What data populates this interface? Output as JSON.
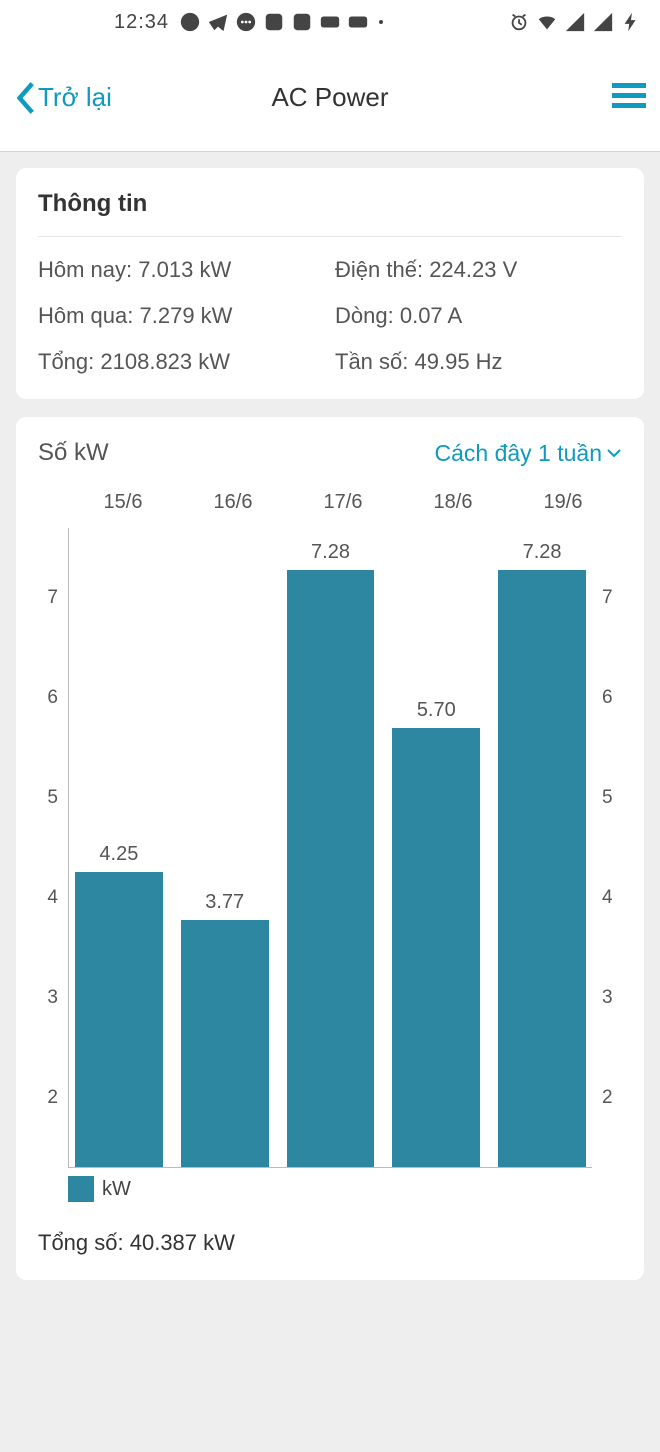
{
  "status_bar": {
    "time": "12:34"
  },
  "header": {
    "back_label": "Trở lại",
    "title": "AC Power"
  },
  "info_card": {
    "title": "Thông tin",
    "today_label": "Hôm nay:",
    "today_value": "7.013 kW",
    "voltage_label": "Điện thế:",
    "voltage_value": "224.23 V",
    "yesterday_label": "Hôm qua:",
    "yesterday_value": "7.279 kW",
    "current_label": "Dòng:",
    "current_value": "0.07 A",
    "total_label": "Tổng:",
    "total_value": "2108.823 kW",
    "freq_label": "Tần số:",
    "freq_value": "49.95 Hz"
  },
  "chart": {
    "type": "bar",
    "y_label": "Số kW",
    "range_label": "Cách đây 1 tuần",
    "categories": [
      "15/6",
      "16/6",
      "17/6",
      "18/6",
      "19/6"
    ],
    "values": [
      4.25,
      3.77,
      7.28,
      5.7,
      7.28
    ],
    "value_labels": [
      "4.25",
      "3.77",
      "7.28",
      "5.70",
      "7.28"
    ],
    "bar_color": "#2d87a0",
    "y_ticks": [
      2,
      3,
      4,
      5,
      6,
      7
    ],
    "y_min": 1.3,
    "y_max": 7.7,
    "legend_label": "kW",
    "total_label": "Tổng số:",
    "total_value": "40.387 kW",
    "axis_color": "#bbbbbb",
    "label_color": "#555555",
    "accent_color": "#0f9abf",
    "background_color": "#ffffff",
    "label_fontsize": 20
  }
}
